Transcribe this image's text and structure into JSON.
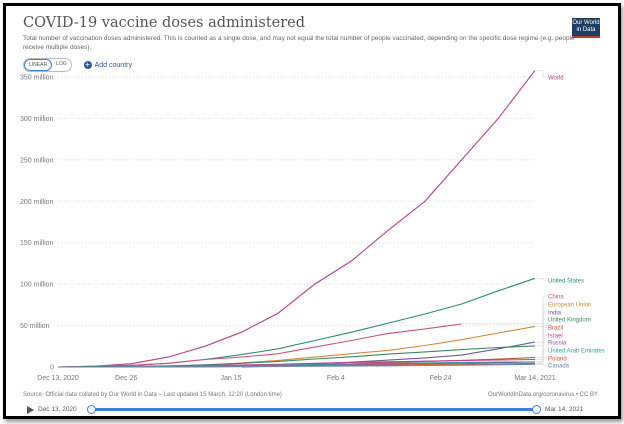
{
  "header": {
    "title": "COVID-19 vaccine doses administered",
    "subtitle": "Total number of vaccination doses administered. This is counted as a single dose, and may not equal the total number of people vaccinated, depending on the specific dose regime (e.g. people receive multiple doses).",
    "logo": "Our World in Data"
  },
  "controls": {
    "linear": "LINEAR",
    "log": "LOG",
    "active_scale": "linear",
    "add_country": "Add country",
    "add_icon": "plus-circle-icon"
  },
  "footer": {
    "source": "Source: Official data collated by Our World in Data – Last updated 15 March, 12:20 (London time)",
    "credit": "OurWorldInData.org/coronavirus • CC BY"
  },
  "timeline": {
    "start": "Dec 13, 2020",
    "end": "Mar 14, 2021",
    "play_icon": "play-icon"
  },
  "chart_data": {
    "type": "line",
    "title": "COVID-19 vaccine doses administered",
    "xlabel": "",
    "ylabel": "",
    "x_ticks": [
      "Dec 13, 2020",
      "Dec 26",
      "Jan 15",
      "Feb 4",
      "Feb 24",
      "Mar 14, 2021"
    ],
    "x_tick_dates": [
      "2020-12-13",
      "2020-12-26",
      "2021-01-15",
      "2021-02-04",
      "2021-02-24",
      "2021-03-14"
    ],
    "y_ticks": [
      "0",
      "50 million",
      "100 million",
      "150 million",
      "200 million",
      "250 million",
      "300 million",
      "350 million"
    ],
    "y_tick_values": [
      0,
      50000000,
      100000000,
      150000000,
      200000000,
      250000000,
      300000000,
      350000000
    ],
    "xlim": [
      "2020-12-13",
      "2021-03-14"
    ],
    "ylim": [
      0,
      360000000
    ],
    "grid": "horizontal-dotted",
    "legend": "right-labels",
    "dates": [
      "2020-12-13",
      "2020-12-20",
      "2020-12-27",
      "2021-01-03",
      "2021-01-10",
      "2021-01-17",
      "2021-01-24",
      "2021-01-31",
      "2021-02-07",
      "2021-02-14",
      "2021-02-21",
      "2021-02-28",
      "2021-03-07",
      "2021-03-14"
    ],
    "series": [
      {
        "name": "World",
        "color": "#b5428f",
        "values": [
          0,
          1000000,
          4000000,
          12000000,
          25000000,
          42000000,
          65000000,
          100000000,
          128000000,
          165000000,
          200000000,
          250000000,
          300000000,
          358000000
        ]
      },
      {
        "name": "United States",
        "color": "#2a8a7a",
        "values": [
          0,
          600000,
          2000000,
          4500000,
          9000000,
          15000000,
          22000000,
          32000000,
          42000000,
          53000000,
          64000000,
          76000000,
          92000000,
          107000000
        ]
      },
      {
        "name": "China",
        "color": "#d1547a",
        "values": [
          0,
          1000000,
          2000000,
          4500000,
          9000000,
          12000000,
          16000000,
          24000000,
          32000000,
          40500000,
          46000000,
          52000000,
          null,
          null
        ]
      },
      {
        "name": "European Union",
        "color": "#d08a3a",
        "values": [
          0,
          0,
          100000,
          600000,
          2000000,
          5000000,
          8000000,
          12000000,
          16000000,
          20000000,
          26000000,
          33000000,
          41000000,
          49000000
        ]
      },
      {
        "name": "India",
        "color": "#6c5b9e",
        "values": [
          null,
          null,
          null,
          null,
          null,
          200000,
          1600000,
          3700000,
          5800000,
          8300000,
          11000000,
          14400000,
          22000000,
          30000000
        ]
      },
      {
        "name": "United Kingdom",
        "color": "#3a8a5a",
        "values": [
          0,
          500000,
          900000,
          1300000,
          2600000,
          4500000,
          6800000,
          9600000,
          12300000,
          15600000,
          18200000,
          21000000,
          23500000,
          25500000
        ]
      },
      {
        "name": "Brazil",
        "color": "#b4583a",
        "values": [
          null,
          null,
          null,
          null,
          null,
          0,
          800000,
          2300000,
          3800000,
          5500000,
          6700000,
          8000000,
          9500000,
          11500000
        ]
      },
      {
        "name": "Israel",
        "color": "#c2408f",
        "values": [
          null,
          10000,
          300000,
          1100000,
          1900000,
          2500000,
          3300000,
          4500000,
          5500000,
          6300000,
          7000000,
          7800000,
          8500000,
          9000000
        ]
      },
      {
        "name": "Russia",
        "color": "#8a4fa0",
        "values": [
          0,
          50000,
          150000,
          400000,
          700000,
          1000000,
          1500000,
          2000000,
          2700000,
          3400000,
          4000000,
          4700000,
          5300000,
          6000000
        ]
      },
      {
        "name": "United Arab Emirates",
        "color": "#3d9aa0",
        "values": [
          0,
          50000,
          200000,
          600000,
          1100000,
          1600000,
          2200000,
          3000000,
          3800000,
          4500000,
          5000000,
          5500000,
          5900000,
          6200000
        ]
      },
      {
        "name": "Poland",
        "color": "#d2603a",
        "values": [
          null,
          null,
          10000,
          100000,
          300000,
          500000,
          800000,
          1400000,
          1900000,
          2400000,
          2900000,
          3400000,
          3900000,
          4300000
        ]
      },
      {
        "name": "Canada",
        "color": "#6a87a8",
        "values": [
          0,
          20000,
          100000,
          200000,
          400000,
          600000,
          800000,
          1000000,
          1200000,
          1500000,
          1800000,
          2200000,
          2700000,
          3200000
        ]
      }
    ]
  }
}
